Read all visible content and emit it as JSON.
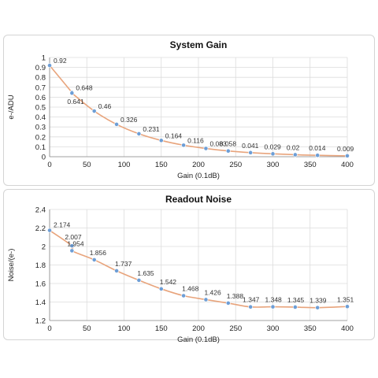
{
  "chart_data": [
    {
      "type": "line",
      "title": "System Gain",
      "xlabel": "Gain (0.1dB)",
      "ylabel": "e-/ADU",
      "xlim": [
        0,
        400
      ],
      "ylim": [
        0,
        1
      ],
      "xticks": [
        "0",
        "50",
        "100",
        "150",
        "200",
        "250",
        "300",
        "350",
        "400"
      ],
      "yticks": [
        "0",
        "0.1",
        "0.2",
        "0.3",
        "0.4",
        "0.5",
        "0.6",
        "0.7",
        "0.8",
        "0.9",
        "1"
      ],
      "grid": true,
      "series": [
        {
          "x": [
            0,
            30,
            30,
            60,
            90,
            120,
            150,
            180,
            210,
            240,
            270,
            300,
            330,
            360,
            400
          ],
          "values": [
            0.92,
            0.648,
            0.641,
            0.46,
            0.326,
            0.231,
            0.164,
            0.116,
            0.083,
            0.058,
            0.041,
            0.029,
            0.02,
            0.014,
            0.009
          ],
          "labels": [
            "0.92",
            "0.648",
            "0.641",
            "0.46",
            "0.326",
            "0.231",
            "0.164",
            "0.116",
            "0.083",
            "0.058",
            "0.041",
            "0.029",
            "0.02",
            "0.014",
            "0.009"
          ]
        }
      ]
    },
    {
      "type": "line",
      "title": "Readout Noise",
      "xlabel": "Gain (0.1dB)",
      "ylabel": "Noise/(e-)",
      "xlim": [
        0,
        400
      ],
      "ylim": [
        1.2,
        2.4
      ],
      "xticks": [
        "0",
        "50",
        "100",
        "150",
        "200",
        "250",
        "300",
        "350",
        "400"
      ],
      "yticks": [
        "1.2",
        "1.4",
        "1.6",
        "1.8",
        "2",
        "2.2",
        "2.4"
      ],
      "grid": true,
      "series": [
        {
          "x": [
            0,
            30,
            30,
            60,
            90,
            120,
            150,
            180,
            210,
            240,
            270,
            300,
            330,
            360,
            400
          ],
          "values": [
            2.174,
            2.007,
            1.954,
            1.856,
            1.737,
            1.635,
            1.542,
            1.468,
            1.426,
            1.388,
            1.347,
            1.348,
            1.345,
            1.339,
            1.351
          ],
          "labels": [
            "2.174",
            "2.007",
            "1.954",
            "1.856",
            "1.737",
            "1.635",
            "1.542",
            "1.468",
            "1.426",
            "1.388",
            "1.347",
            "1.348",
            "1.345",
            "1.339",
            "1.351"
          ]
        }
      ]
    }
  ],
  "colors": {
    "line": "#e8a47c",
    "point": "#6d9ed6",
    "grid": "#dcdcdc"
  }
}
